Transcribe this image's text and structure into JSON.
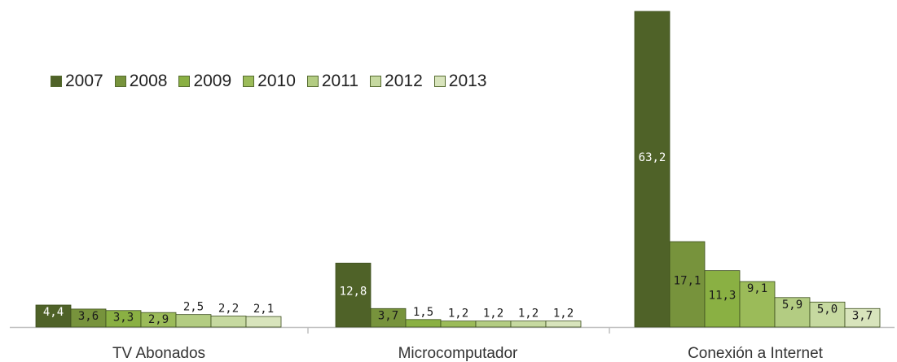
{
  "chart_data": {
    "type": "bar",
    "categories": [
      "TV Abonados",
      "Microcomputador",
      "Conexión a Internet"
    ],
    "series": [
      {
        "name": "2007",
        "color": "#4f6228",
        "label_color": "#ffffff",
        "values": [
          4.4,
          12.8,
          63.2
        ],
        "labels": [
          "4,4",
          "12,8",
          "63,2"
        ]
      },
      {
        "name": "2008",
        "color": "#77933c",
        "label_color": "#1a1a1a",
        "values": [
          3.6,
          3.7,
          17.1
        ],
        "labels": [
          "3,6",
          "3,7",
          "17,1"
        ]
      },
      {
        "name": "2009",
        "color": "#8ab043",
        "label_color": "#1a1a1a",
        "values": [
          3.3,
          1.5,
          11.3
        ],
        "labels": [
          "3,3",
          "1,5",
          "11,3"
        ]
      },
      {
        "name": "2010",
        "color": "#9bbb59",
        "label_color": "#1a1a1a",
        "values": [
          2.9,
          1.2,
          9.1
        ],
        "labels": [
          "2,9",
          "1,2",
          "9,1"
        ]
      },
      {
        "name": "2011",
        "color": "#b3cc82",
        "label_color": "#1a1a1a",
        "values": [
          2.5,
          1.2,
          5.9
        ],
        "labels": [
          "2,5",
          "1,2",
          "5,9"
        ]
      },
      {
        "name": "2012",
        "color": "#c6d9a0",
        "label_color": "#1a1a1a",
        "values": [
          2.2,
          1.2,
          5.0
        ],
        "labels": [
          "2,2",
          "1,2",
          "5,0"
        ]
      },
      {
        "name": "2013",
        "color": "#d8e4bc",
        "label_color": "#1a1a1a",
        "values": [
          2.1,
          1.2,
          3.7
        ],
        "labels": [
          "2,1",
          "1,2",
          "3,7"
        ]
      }
    ],
    "ylim": [
      0,
      63.2
    ],
    "grid": false,
    "legend": "top-left"
  }
}
